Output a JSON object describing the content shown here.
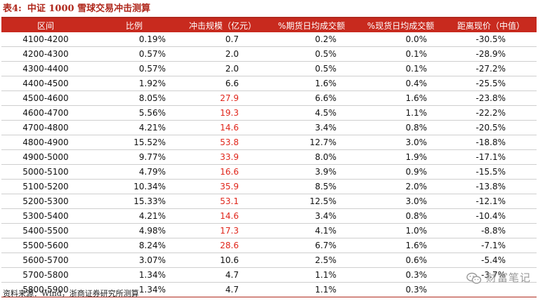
{
  "title": {
    "label": "表4:",
    "text": "中证 1000 雪球交易冲击测算"
  },
  "columns": [
    "区间",
    "比例",
    "冲击规模（亿元）",
    "%期货日均成交额",
    "%现货日均成交额",
    "距离现价（中值）"
  ],
  "rows": [
    {
      "range": "4100-4200",
      "ratio": "0.19%",
      "impact": "0.7",
      "fut": "0.2%",
      "spot": "0.0%",
      "dist": "-30.5%",
      "highlight": false
    },
    {
      "range": "4200-4300",
      "ratio": "0.57%",
      "impact": "2.0",
      "fut": "0.5%",
      "spot": "0.1%",
      "dist": "-28.9%",
      "highlight": false
    },
    {
      "range": "4300-4400",
      "ratio": "0.57%",
      "impact": "2.0",
      "fut": "0.5%",
      "spot": "0.1%",
      "dist": "-27.2%",
      "highlight": false
    },
    {
      "range": "4400-4500",
      "ratio": "1.92%",
      "impact": "6.6",
      "fut": "1.6%",
      "spot": "0.4%",
      "dist": "-25.5%",
      "highlight": false
    },
    {
      "range": "4500-4600",
      "ratio": "8.05%",
      "impact": "27.9",
      "fut": "6.6%",
      "spot": "1.6%",
      "dist": "-23.8%",
      "highlight": true
    },
    {
      "range": "4600-4700",
      "ratio": "5.56%",
      "impact": "19.3",
      "fut": "4.5%",
      "spot": "1.1%",
      "dist": "-22.2%",
      "highlight": true
    },
    {
      "range": "4700-4800",
      "ratio": "4.21%",
      "impact": "14.6",
      "fut": "3.4%",
      "spot": "0.8%",
      "dist": "-20.5%",
      "highlight": true
    },
    {
      "range": "4800-4900",
      "ratio": "15.52%",
      "impact": "53.8",
      "fut": "12.7%",
      "spot": "3.0%",
      "dist": "-18.8%",
      "highlight": true
    },
    {
      "range": "4900-5000",
      "ratio": "9.77%",
      "impact": "33.9",
      "fut": "8.0%",
      "spot": "1.9%",
      "dist": "-17.1%",
      "highlight": true
    },
    {
      "range": "5000-5100",
      "ratio": "4.79%",
      "impact": "16.6",
      "fut": "3.9%",
      "spot": "0.9%",
      "dist": "-15.5%",
      "highlight": true
    },
    {
      "range": "5100-5200",
      "ratio": "10.34%",
      "impact": "35.9",
      "fut": "8.5%",
      "spot": "2.0%",
      "dist": "-13.8%",
      "highlight": true
    },
    {
      "range": "5200-5300",
      "ratio": "15.33%",
      "impact": "53.1",
      "fut": "12.5%",
      "spot": "3.0%",
      "dist": "-12.1%",
      "highlight": true
    },
    {
      "range": "5300-5400",
      "ratio": "4.21%",
      "impact": "14.6",
      "fut": "3.4%",
      "spot": "0.8%",
      "dist": "-10.4%",
      "highlight": true
    },
    {
      "range": "5400-5500",
      "ratio": "4.98%",
      "impact": "17.3",
      "fut": "4.1%",
      "spot": "1.0%",
      "dist": "-8.8%",
      "highlight": true
    },
    {
      "range": "5500-5600",
      "ratio": "8.24%",
      "impact": "28.6",
      "fut": "6.7%",
      "spot": "1.6%",
      "dist": "-7.1%",
      "highlight": true
    },
    {
      "range": "5600-5700",
      "ratio": "3.07%",
      "impact": "10.6",
      "fut": "2.5%",
      "spot": "0.6%",
      "dist": "-5.4%",
      "highlight": false
    },
    {
      "range": "5700-5800",
      "ratio": "1.34%",
      "impact": "4.7",
      "fut": "1.1%",
      "spot": "0.3%",
      "dist": "-3.7%",
      "highlight": false
    },
    {
      "range": "5800-5900",
      "ratio": "1.34%",
      "impact": "4.7",
      "fut": "1.1%",
      "spot": "0.3%",
      "dist": "",
      "highlight": false
    }
  ],
  "source": "资料来源：Wind，浙商证券研究所测算",
  "watermark": {
    "icon": "wechat-icon",
    "text": "财富笔记"
  },
  "colors": {
    "header_bg": "#c82a1e",
    "title": "#b0281c",
    "highlight_text": "#e0261b"
  }
}
